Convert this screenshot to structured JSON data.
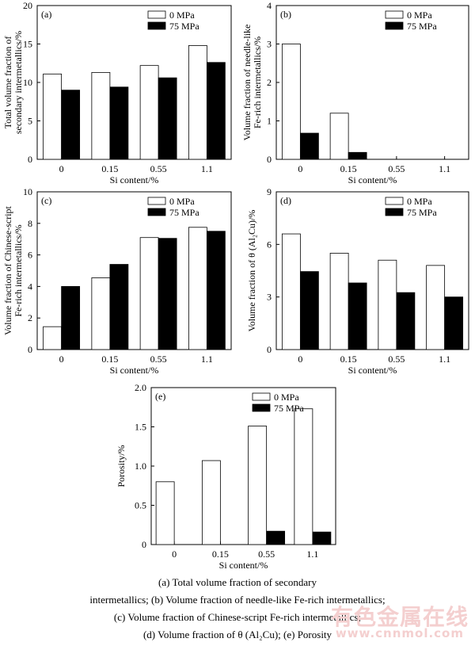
{
  "chart_data": [
    {
      "panel_label": "(a)",
      "type": "bar",
      "categories": [
        "0",
        "0.15",
        "0.55",
        "1.1"
      ],
      "series": [
        {
          "name": "0 MPa",
          "values": [
            11.1,
            11.3,
            12.2,
            14.8
          ]
        },
        {
          "name": "75 MPa",
          "values": [
            9.0,
            9.4,
            10.6,
            12.6
          ]
        }
      ],
      "xlabel": "Si content/%",
      "ylabel": [
        "Total volume fraction of",
        "secondary intermetallics/%"
      ],
      "ylim": [
        0,
        20
      ],
      "yticks": [
        "0",
        "5",
        "10",
        "15",
        "20"
      ],
      "legend_position": "top-right"
    },
    {
      "panel_label": "(b)",
      "type": "bar",
      "categories": [
        "0",
        "0.15",
        "0.55",
        "1.1"
      ],
      "series": [
        {
          "name": "0 MPa",
          "values": [
            3.0,
            1.2,
            0,
            0
          ]
        },
        {
          "name": "75 MPa",
          "values": [
            0.68,
            0.18,
            0,
            0
          ]
        }
      ],
      "xlabel": "Si content/%",
      "ylabel": [
        "Volume fraction of needle-like",
        "Fe-rich intermetallics/%"
      ],
      "ylim": [
        0,
        4
      ],
      "yticks": [
        "0",
        "1",
        "2",
        "3",
        "4"
      ],
      "legend_position": "top-right"
    },
    {
      "panel_label": "(c)",
      "type": "bar",
      "categories": [
        "0",
        "0.15",
        "0.55",
        "1.1"
      ],
      "series": [
        {
          "name": "0 MPa",
          "values": [
            1.45,
            4.55,
            7.1,
            7.75
          ]
        },
        {
          "name": "75 MPa",
          "values": [
            4.0,
            5.4,
            7.05,
            7.5
          ]
        }
      ],
      "xlabel": "Si content/%",
      "ylabel": [
        "Volume fraction of Chinese-script",
        "Fe-rich intermetallics/%"
      ],
      "ylim": [
        0,
        10
      ],
      "yticks": [
        "0",
        "2",
        "4",
        "6",
        "8",
        "10"
      ],
      "legend_position": "top-right"
    },
    {
      "panel_label": "(d)",
      "type": "bar",
      "categories": [
        "0",
        "0.15",
        "0.55",
        "1.1"
      ],
      "series": [
        {
          "name": "0 MPa",
          "values": [
            6.6,
            5.5,
            5.1,
            4.8
          ]
        },
        {
          "name": "75 MPa",
          "values": [
            4.45,
            3.8,
            3.25,
            3.0
          ]
        }
      ],
      "xlabel": "Si content/%",
      "ylabel": [
        "Volume fraction of θ (Al₂Cu)/%"
      ],
      "ylim": [
        0,
        9
      ],
      "yticks": [
        "0",
        "3",
        "6",
        "9"
      ],
      "legend_position": "top-right"
    },
    {
      "panel_label": "(e)",
      "type": "bar",
      "categories": [
        "0",
        "0.15",
        "0.55",
        "1.1"
      ],
      "series": [
        {
          "name": "0 MPa",
          "values": [
            0.8,
            1.07,
            1.51,
            1.73
          ]
        },
        {
          "name": "75 MPa",
          "values": [
            0,
            0,
            0.17,
            0.16
          ]
        }
      ],
      "xlabel": "Si content/%",
      "ylabel": [
        "Porosity/%"
      ],
      "ylim": [
        0,
        2.0
      ],
      "yticks": [
        "0",
        "0.5",
        "1.0",
        "1.5",
        "2.0"
      ],
      "legend_position": "top-right"
    }
  ],
  "caption": {
    "line1": "(a) Total volume fraction of secondary",
    "line2": "intermetallics; (b) Volume fraction of needle-like Fe-rich intermetallics;",
    "line3": "(c) Volume fraction of Chinese-script Fe-rich intermetallics;",
    "line4": "(d) Volume fraction of θ (Al₂Cu); (e) Porosity"
  },
  "watermark": {
    "line1": "有色金属在线",
    "line2": "www.cnnmol.com"
  }
}
